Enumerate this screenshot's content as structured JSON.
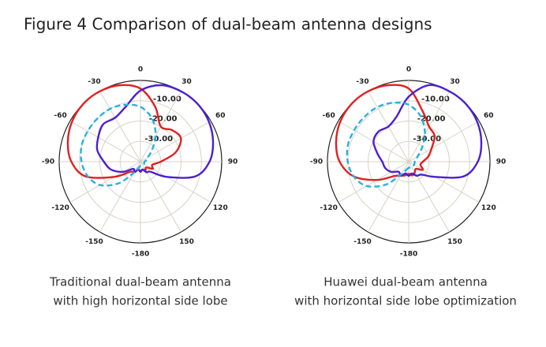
{
  "title": "Figure 4 Comparison of dual-beam antenna designs",
  "chart_data": [
    {
      "type": "polar",
      "caption": [
        "Traditional dual-beam antenna",
        "with high horizontal side lobe"
      ],
      "theta": [
        -180,
        -165,
        -150,
        -135,
        -120,
        -105,
        -90,
        -75,
        -60,
        -45,
        -30,
        -15,
        0,
        15,
        30,
        45,
        60,
        75,
        90,
        105,
        120,
        135,
        150,
        165
      ],
      "thetaticks": [
        0,
        30,
        60,
        90,
        120,
        150,
        -180,
        -150,
        -120,
        -90,
        -60,
        -30
      ],
      "rlim": [
        -40,
        0
      ],
      "rticks": [
        {
          "value": -10,
          "label": "-10.00"
        },
        {
          "value": -20,
          "label": "-20.00"
        },
        {
          "value": -30,
          "label": "-30.00"
        }
      ],
      "series": [
        {
          "color": "#e02020",
          "line_style": "solid",
          "values": [
            -35,
            -36,
            -34,
            -33,
            -25,
            -12,
            -6,
            -3,
            -1,
            0,
            0,
            -1,
            -4,
            -12,
            -20,
            -18,
            -17,
            -22,
            -30,
            -34,
            -33,
            -36,
            -35,
            -36
          ]
        },
        {
          "color": "#4b1fd1",
          "line_style": "solid",
          "values": [
            -35,
            -36,
            -34,
            -35,
            -30,
            -25,
            -22,
            -18,
            -16,
            -14,
            -15,
            -12,
            -5,
            -1,
            0,
            0,
            -1,
            -3,
            -6,
            -12,
            -25,
            -33,
            -34,
            -36
          ]
        },
        {
          "color": "#29b0e0",
          "line_style": "dashed",
          "values": [
            -38,
            -37,
            -34,
            -25,
            -17,
            -13,
            -11,
            -10,
            -10,
            -10,
            -10,
            -11,
            -13,
            -18,
            -25,
            -32,
            -36,
            -37,
            -38,
            -38,
            -38,
            -38,
            -38,
            -38
          ]
        }
      ]
    },
    {
      "type": "polar",
      "caption": [
        "Huawei dual-beam antenna",
        "with horizontal side lobe optimization"
      ],
      "theta": [
        -180,
        -165,
        -150,
        -135,
        -120,
        -105,
        -90,
        -75,
        -60,
        -45,
        -30,
        -15,
        0,
        15,
        30,
        45,
        60,
        75,
        90,
        105,
        120,
        135,
        150,
        165
      ],
      "thetaticks": [
        0,
        30,
        60,
        90,
        120,
        150,
        -180,
        -150,
        -120,
        -90,
        -60,
        -30
      ],
      "rlim": [
        -40,
        0
      ],
      "rticks": [
        {
          "value": -10,
          "label": "-10.00"
        },
        {
          "value": -20,
          "label": "-20.00"
        },
        {
          "value": -30,
          "label": "-30.00"
        }
      ],
      "series": [
        {
          "color": "#e02020",
          "line_style": "solid",
          "values": [
            -34,
            -33,
            -32,
            -30,
            -22,
            -12,
            -6,
            -3,
            -1,
            0,
            0,
            -1,
            -4,
            -14,
            -20,
            -22,
            -27,
            -30,
            -33,
            -34,
            -32,
            -35,
            -34,
            -33
          ]
        },
        {
          "color": "#4b1fd1",
          "line_style": "solid",
          "values": [
            -33,
            -34,
            -32,
            -33,
            -30,
            -28,
            -27,
            -24,
            -20,
            -19,
            -20,
            -17,
            -8,
            -1,
            0,
            0,
            -1,
            -3,
            -6,
            -12,
            -25,
            -31,
            -32,
            -34
          ]
        },
        {
          "color": "#29b0e0",
          "line_style": "dashed",
          "values": [
            -37,
            -36,
            -33,
            -24,
            -16,
            -12,
            -10,
            -9,
            -9,
            -9,
            -9,
            -10,
            -12,
            -17,
            -24,
            -31,
            -35,
            -36,
            -37,
            -37,
            -37,
            -37,
            -37,
            -37
          ]
        }
      ]
    }
  ]
}
